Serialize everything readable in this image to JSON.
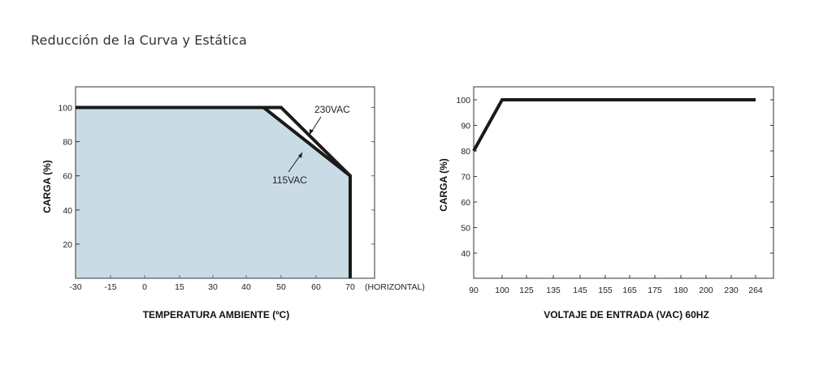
{
  "page": {
    "title": "Reducción de la Curva y Estática"
  },
  "colors": {
    "derating_fill": "#c9dce6",
    "line": "#1a1a1a",
    "tick_blue": "#3b6fc2",
    "frame": "#333333"
  },
  "chart_data": [
    {
      "type": "area",
      "xlabel": "TEMPERATURA AMBIENTE (ºC)",
      "ylabel": "CARGA (%)",
      "x_ticks": [
        -30,
        -15,
        0,
        15,
        30,
        40,
        50,
        60,
        70
      ],
      "x_tick_suffix": "(HORIZONTAL)",
      "y_ticks": [
        20,
        40,
        60,
        80,
        100
      ],
      "xlim": [
        -30,
        70
      ],
      "ylim": [
        0,
        110
      ],
      "fill_area": true,
      "series": [
        {
          "name": "230VAC",
          "x": [
            -30,
            50,
            70,
            70
          ],
          "y": [
            100,
            100,
            60,
            0
          ]
        },
        {
          "name": "115VAC",
          "x": [
            -30,
            45,
            70,
            70
          ],
          "y": [
            100,
            100,
            60,
            0
          ]
        }
      ],
      "annotations": [
        {
          "text": "230VAC",
          "x": 56,
          "y": 92
        },
        {
          "text": "115VAC",
          "x": 56,
          "y": 68
        }
      ]
    },
    {
      "type": "line",
      "xlabel": "VOLTAJE DE ENTRADA (VAC) 60HZ",
      "ylabel": "CARGA (%)",
      "x_ticks": [
        "90",
        "100",
        "125",
        "135",
        "145",
        "155",
        "165",
        "175",
        "180",
        "200",
        "230",
        "264"
      ],
      "y_ticks": [
        40,
        50,
        60,
        70,
        80,
        90,
        100
      ],
      "ylim": [
        30,
        105
      ],
      "series": [
        {
          "x": [
            "90",
            "100",
            "264"
          ],
          "y": [
            80,
            100,
            100
          ]
        }
      ]
    }
  ]
}
